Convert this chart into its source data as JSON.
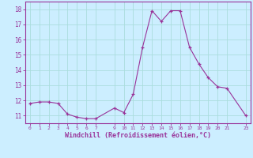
{
  "x": [
    0,
    1,
    2,
    3,
    4,
    5,
    6,
    7,
    9,
    10,
    11,
    12,
    13,
    14,
    15,
    16,
    17,
    18,
    19,
    20,
    21,
    23
  ],
  "y": [
    11.8,
    11.9,
    11.9,
    11.8,
    11.1,
    10.9,
    10.8,
    10.8,
    11.5,
    11.2,
    12.4,
    15.5,
    17.9,
    17.2,
    17.9,
    17.9,
    15.5,
    14.4,
    13.5,
    12.9,
    12.8,
    11.0
  ],
  "line_color": "#993399",
  "marker_color": "#993399",
  "bg_color": "#cceeff",
  "grid_color": "#aadddd",
  "xlabel": "Windchill (Refroidissement éolien,°C)",
  "xlabel_color": "#993399",
  "tick_color": "#993399",
  "xticks": [
    0,
    1,
    2,
    3,
    4,
    5,
    6,
    7,
    9,
    10,
    11,
    12,
    13,
    14,
    15,
    16,
    17,
    18,
    19,
    20,
    21,
    23
  ],
  "yticks": [
    11,
    12,
    13,
    14,
    15,
    16,
    17,
    18
  ],
  "ylim": [
    10.5,
    18.5
  ],
  "xlim": [
    -0.5,
    23.5
  ]
}
